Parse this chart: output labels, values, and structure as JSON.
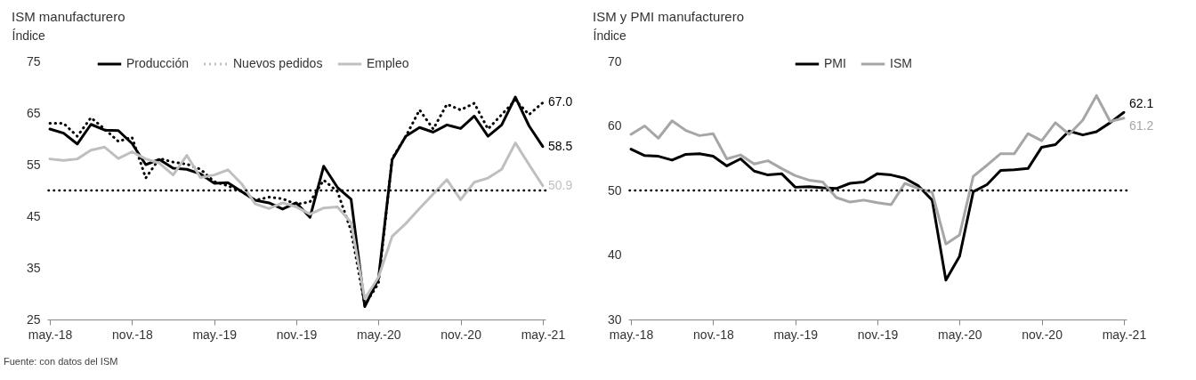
{
  "chart_data": [
    {
      "type": "line",
      "title": "ISM manufacturero",
      "ylabel": "Índice",
      "categories": [
        "may.-18",
        null,
        null,
        null,
        null,
        null,
        "nov.-18",
        null,
        null,
        null,
        null,
        null,
        "may.-19",
        null,
        null,
        null,
        null,
        null,
        "nov.-19",
        null,
        null,
        null,
        null,
        null,
        "may.-20",
        null,
        null,
        null,
        null,
        null,
        "nov.-20",
        null,
        null,
        null,
        null,
        null,
        "may.-21"
      ],
      "series": [
        {
          "name": "Producción",
          "color": "#000000",
          "line_style": "solid",
          "values": [
            61.9,
            61.1,
            59.0,
            62.8,
            61.7,
            61.6,
            59.1,
            55.0,
            56.0,
            54.3,
            54.1,
            53.2,
            51.4,
            51.5,
            49.8,
            48.1,
            47.6,
            46.4,
            47.6,
            44.8,
            54.7,
            50.6,
            48.3,
            27.5,
            32.9,
            56.0,
            60.5,
            62.2,
            61.3,
            62.7,
            62.0,
            64.4,
            60.5,
            62.7,
            68.1,
            62.5,
            58.5
          ],
          "value_labels": [
            null,
            null,
            null,
            null,
            null,
            null,
            null,
            null,
            null,
            null,
            null,
            null,
            null,
            null,
            null,
            null,
            null,
            null,
            null,
            null,
            null,
            null,
            null,
            null,
            null,
            null,
            null,
            null,
            null,
            null,
            null,
            null,
            null,
            null,
            null,
            null,
            "58.5"
          ]
        },
        {
          "name": "Nuevos pedidos",
          "color": "#000000",
          "line_style": "dotted",
          "values": [
            63.0,
            63.0,
            60.5,
            64.1,
            61.9,
            59.5,
            60.3,
            52.4,
            56.2,
            55.5,
            55.1,
            54.1,
            51.7,
            50.9,
            49.8,
            48.1,
            48.7,
            48.4,
            47.3,
            47.8,
            52.0,
            49.8,
            42.2,
            27.8,
            32.0,
            56.2,
            60.5,
            65.6,
            61.9,
            66.7,
            65.6,
            66.9,
            61.9,
            64.7,
            67.5,
            64.7,
            67.0
          ],
          "value_labels": [
            null,
            null,
            null,
            null,
            null,
            null,
            null,
            null,
            null,
            null,
            null,
            null,
            null,
            null,
            null,
            null,
            null,
            null,
            null,
            null,
            null,
            null,
            null,
            null,
            null,
            null,
            null,
            null,
            null,
            null,
            null,
            null,
            null,
            null,
            null,
            null,
            "67.0"
          ]
        },
        {
          "name": "Empleo",
          "color": "#bfbfbf",
          "line_style": "solid",
          "values": [
            56.1,
            55.8,
            56.1,
            57.8,
            58.4,
            56.2,
            57.5,
            56.1,
            55.3,
            53.0,
            56.8,
            52.5,
            53.0,
            54.0,
            51.3,
            47.4,
            46.5,
            47.6,
            46.8,
            45.4,
            46.6,
            46.8,
            43.8,
            29.0,
            33.2,
            41.1,
            43.6,
            46.5,
            49.3,
            52.1,
            48.2,
            51.6,
            52.4,
            54.1,
            59.2,
            55.0,
            50.9
          ],
          "value_labels": [
            null,
            null,
            null,
            null,
            null,
            null,
            null,
            null,
            null,
            null,
            null,
            null,
            null,
            null,
            null,
            null,
            null,
            null,
            null,
            null,
            null,
            null,
            null,
            null,
            null,
            null,
            null,
            null,
            null,
            null,
            null,
            null,
            null,
            null,
            null,
            null,
            "50.9"
          ]
        }
      ],
      "ylim": [
        25,
        75
      ],
      "yticks": [
        25,
        35,
        45,
        55,
        65,
        75
      ],
      "ref_lines": [
        {
          "axis": "y",
          "value": 50,
          "color": "#000000",
          "line_style": "dotted"
        }
      ],
      "legend": "top",
      "grid": false,
      "annotations": [
        "Fuente: con datos del ISM"
      ]
    },
    {
      "type": "line",
      "title": "ISM y PMI manufacturero",
      "ylabel": "Índice",
      "categories": [
        "may.-18",
        null,
        null,
        null,
        null,
        null,
        "nov.-18",
        null,
        null,
        null,
        null,
        null,
        "may.-19",
        null,
        null,
        null,
        null,
        null,
        "nov.-19",
        null,
        null,
        null,
        null,
        null,
        "may.-20",
        null,
        null,
        null,
        null,
        null,
        "nov.-20",
        null,
        null,
        null,
        null,
        null,
        "may.-21"
      ],
      "series": [
        {
          "name": "PMI",
          "color": "#000000",
          "line_style": "solid",
          "values": [
            56.4,
            55.4,
            55.3,
            54.7,
            55.6,
            55.7,
            55.3,
            53.8,
            54.9,
            53.0,
            52.4,
            52.6,
            50.5,
            50.6,
            50.4,
            50.3,
            51.1,
            51.3,
            52.6,
            52.4,
            51.9,
            50.7,
            48.5,
            36.1,
            39.8,
            49.8,
            50.9,
            53.1,
            53.2,
            53.4,
            56.7,
            57.1,
            59.2,
            58.6,
            59.1,
            60.5,
            62.1
          ],
          "value_labels": [
            null,
            null,
            null,
            null,
            null,
            null,
            null,
            null,
            null,
            null,
            null,
            null,
            null,
            null,
            null,
            null,
            null,
            null,
            null,
            null,
            null,
            null,
            null,
            null,
            null,
            null,
            null,
            null,
            null,
            null,
            null,
            null,
            null,
            null,
            null,
            null,
            "62.1"
          ]
        },
        {
          "name": "ISM",
          "color": "#a6a6a6",
          "line_style": "solid",
          "values": [
            58.7,
            60.0,
            58.1,
            60.8,
            59.3,
            58.5,
            58.8,
            54.9,
            55.5,
            54.1,
            54.6,
            53.4,
            52.3,
            51.6,
            51.3,
            48.9,
            48.2,
            48.5,
            48.1,
            47.8,
            51.1,
            50.3,
            49.7,
            41.7,
            43.1,
            52.2,
            53.9,
            55.7,
            55.7,
            58.8,
            57.7,
            60.5,
            58.7,
            60.9,
            64.7,
            60.7,
            61.2
          ],
          "value_labels": [
            null,
            null,
            null,
            null,
            null,
            null,
            null,
            null,
            null,
            null,
            null,
            null,
            null,
            null,
            null,
            null,
            null,
            null,
            null,
            null,
            null,
            null,
            null,
            null,
            null,
            null,
            null,
            null,
            null,
            null,
            null,
            null,
            null,
            null,
            null,
            null,
            "61.2"
          ]
        }
      ],
      "ylim": [
        30,
        70
      ],
      "yticks": [
        30,
        40,
        50,
        60,
        70
      ],
      "ref_lines": [
        {
          "axis": "y",
          "value": 50,
          "color": "#000000",
          "line_style": "dotted"
        }
      ],
      "legend": "top",
      "grid": false
    }
  ]
}
